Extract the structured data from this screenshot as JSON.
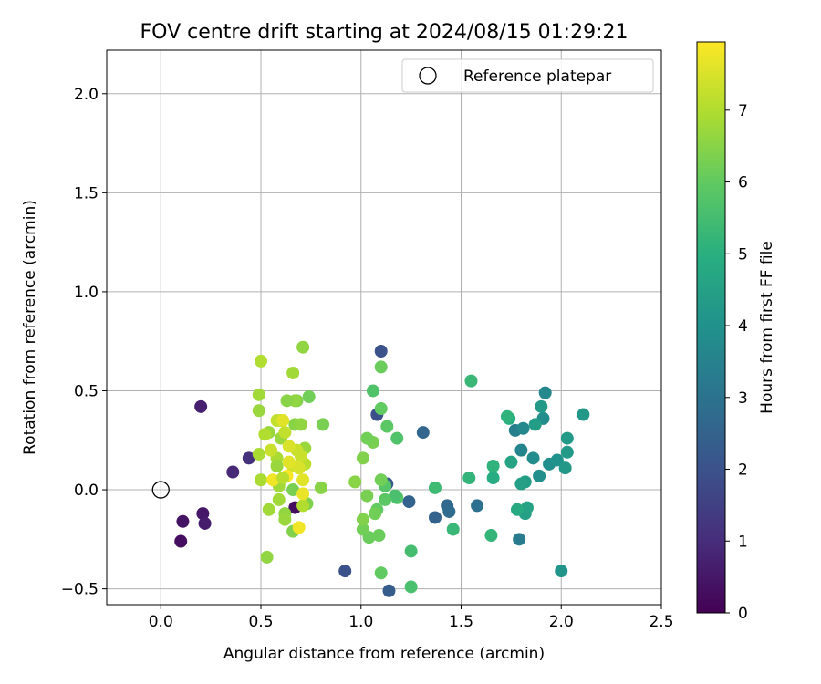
{
  "chart_data": {
    "type": "scatter",
    "title": "FOV centre drift starting at 2024/08/15 01:29:21",
    "xlabel": "Angular distance from reference (arcmin)",
    "ylabel": "Rotation from reference (arcmin)",
    "xlim": [
      -0.27,
      2.5
    ],
    "ylim": [
      -0.58,
      2.22
    ],
    "x_ticks": [
      0.0,
      0.5,
      1.0,
      1.5,
      2.0,
      2.5
    ],
    "x_tick_labels": [
      "0.0",
      "0.5",
      "1.0",
      "1.5",
      "2.0",
      "2.5"
    ],
    "y_ticks": [
      -0.5,
      0.0,
      0.5,
      1.0,
      1.5,
      2.0
    ],
    "y_tick_labels": [
      "−0.5",
      "0.0",
      "0.5",
      "1.0",
      "1.5",
      "2.0"
    ],
    "grid": true,
    "legend_position": "top-right",
    "legend": [
      {
        "label": "Reference platepar",
        "marker": "hollow-circle",
        "color": "#000000"
      }
    ],
    "reference_point": {
      "x": 0.0,
      "y": 0.0
    },
    "colorbar": {
      "label": "Hours from first FF file",
      "min": 0,
      "max": 7.95,
      "ticks": [
        0,
        1,
        2,
        3,
        4,
        5,
        6,
        7
      ],
      "tick_labels": [
        "0",
        "1",
        "2",
        "3",
        "4",
        "5",
        "6",
        "7"
      ],
      "colormap": "viridis"
    },
    "points": [
      {
        "x": 0.1,
        "y": -0.26,
        "c": 0.3
      },
      {
        "x": 0.11,
        "y": -0.16,
        "c": 0.4
      },
      {
        "x": 0.21,
        "y": -0.12,
        "c": 0.5
      },
      {
        "x": 0.22,
        "y": -0.17,
        "c": 0.6
      },
      {
        "x": 0.2,
        "y": 0.42,
        "c": 0.7
      },
      {
        "x": 0.36,
        "y": 0.09,
        "c": 0.9
      },
      {
        "x": 0.44,
        "y": 0.16,
        "c": 1.1
      },
      {
        "x": 0.67,
        "y": -0.09,
        "c": 0.3
      },
      {
        "x": 0.92,
        "y": -0.41,
        "c": 2.0
      },
      {
        "x": 1.1,
        "y": 0.7,
        "c": 2.0
      },
      {
        "x": 1.08,
        "y": 0.38,
        "c": 1.9
      },
      {
        "x": 1.14,
        "y": -0.51,
        "c": 2.3
      },
      {
        "x": 1.13,
        "y": 0.03,
        "c": 2.2
      },
      {
        "x": 1.24,
        "y": -0.06,
        "c": 2.5
      },
      {
        "x": 1.31,
        "y": 0.29,
        "c": 2.6
      },
      {
        "x": 1.37,
        "y": -0.14,
        "c": 2.5
      },
      {
        "x": 1.43,
        "y": -0.08,
        "c": 2.7
      },
      {
        "x": 1.44,
        "y": -0.11,
        "c": 2.8
      },
      {
        "x": 1.58,
        "y": -0.08,
        "c": 2.9
      },
      {
        "x": 1.79,
        "y": -0.25,
        "c": 3.3
      },
      {
        "x": 1.77,
        "y": 0.3,
        "c": 3.4
      },
      {
        "x": 1.8,
        "y": 0.2,
        "c": 3.6
      },
      {
        "x": 1.81,
        "y": 0.31,
        "c": 3.7
      },
      {
        "x": 1.86,
        "y": 0.16,
        "c": 3.8
      },
      {
        "x": 1.89,
        "y": 0.07,
        "c": 3.9
      },
      {
        "x": 1.91,
        "y": 0.36,
        "c": 3.8
      },
      {
        "x": 1.92,
        "y": 0.49,
        "c": 3.7
      },
      {
        "x": 1.94,
        "y": 0.13,
        "c": 3.9
      },
      {
        "x": 1.98,
        "y": 0.15,
        "c": 4.0
      },
      {
        "x": 2.0,
        "y": -0.41,
        "c": 4.1
      },
      {
        "x": 2.02,
        "y": 0.11,
        "c": 4.2
      },
      {
        "x": 2.03,
        "y": 0.19,
        "c": 4.3
      },
      {
        "x": 2.03,
        "y": 0.26,
        "c": 4.3
      },
      {
        "x": 2.11,
        "y": 0.38,
        "c": 4.2
      },
      {
        "x": 1.9,
        "y": 0.42,
        "c": 4.3
      },
      {
        "x": 1.87,
        "y": 0.33,
        "c": 4.4
      },
      {
        "x": 1.82,
        "y": -0.12,
        "c": 4.5
      },
      {
        "x": 1.83,
        "y": -0.09,
        "c": 4.6
      },
      {
        "x": 1.82,
        "y": 0.04,
        "c": 4.4
      },
      {
        "x": 1.8,
        "y": 0.03,
        "c": 4.5
      },
      {
        "x": 1.78,
        "y": -0.1,
        "c": 4.8
      },
      {
        "x": 1.75,
        "y": 0.14,
        "c": 4.6
      },
      {
        "x": 1.74,
        "y": 0.36,
        "c": 4.9
      },
      {
        "x": 1.73,
        "y": 0.37,
        "c": 5.1
      },
      {
        "x": 1.66,
        "y": 0.06,
        "c": 4.9
      },
      {
        "x": 1.66,
        "y": 0.12,
        "c": 5.1
      },
      {
        "x": 1.65,
        "y": -0.23,
        "c": 5.2
      },
      {
        "x": 1.55,
        "y": 0.55,
        "c": 5.3
      },
      {
        "x": 1.54,
        "y": 0.06,
        "c": 5.2
      },
      {
        "x": 1.46,
        "y": -0.2,
        "c": 5.3
      },
      {
        "x": 1.37,
        "y": 0.01,
        "c": 5.4
      },
      {
        "x": 1.25,
        "y": -0.31,
        "c": 5.5
      },
      {
        "x": 1.25,
        "y": -0.49,
        "c": 5.6
      },
      {
        "x": 1.18,
        "y": 0.26,
        "c": 5.7
      },
      {
        "x": 1.18,
        "y": -0.04,
        "c": 5.8
      },
      {
        "x": 1.17,
        "y": -0.03,
        "c": 5.6
      },
      {
        "x": 1.13,
        "y": 0.32,
        "c": 5.9
      },
      {
        "x": 1.12,
        "y": 0.02,
        "c": 5.8
      },
      {
        "x": 1.12,
        "y": -0.05,
        "c": 5.9
      },
      {
        "x": 1.1,
        "y": 0.62,
        "c": 6.1
      },
      {
        "x": 1.1,
        "y": 0.41,
        "c": 6.0
      },
      {
        "x": 1.1,
        "y": 0.05,
        "c": 6.2
      },
      {
        "x": 1.1,
        "y": -0.42,
        "c": 6.0
      },
      {
        "x": 1.09,
        "y": -0.23,
        "c": 6.1
      },
      {
        "x": 1.08,
        "y": -0.1,
        "c": 6.0
      },
      {
        "x": 1.07,
        "y": -0.12,
        "c": 6.2
      },
      {
        "x": 1.06,
        "y": 0.5,
        "c": 5.7
      },
      {
        "x": 1.06,
        "y": 0.24,
        "c": 6.3
      },
      {
        "x": 1.04,
        "y": -0.24,
        "c": 6.1
      },
      {
        "x": 1.03,
        "y": 0.26,
        "c": 6.2
      },
      {
        "x": 1.03,
        "y": -0.03,
        "c": 6.3
      },
      {
        "x": 1.01,
        "y": 0.16,
        "c": 6.4
      },
      {
        "x": 1.01,
        "y": -0.2,
        "c": 6.2
      },
      {
        "x": 1.01,
        "y": -0.15,
        "c": 6.4
      },
      {
        "x": 0.97,
        "y": 0.04,
        "c": 6.5
      },
      {
        "x": 0.81,
        "y": 0.33,
        "c": 6.3
      },
      {
        "x": 0.8,
        "y": 0.01,
        "c": 6.5
      },
      {
        "x": 0.74,
        "y": 0.47,
        "c": 6.2
      },
      {
        "x": 0.73,
        "y": -0.07,
        "c": 6.4
      },
      {
        "x": 0.71,
        "y": 0.72,
        "c": 6.6
      },
      {
        "x": 0.68,
        "y": 0.45,
        "c": 6.4
      },
      {
        "x": 0.67,
        "y": 0.45,
        "c": 6.6
      },
      {
        "x": 0.67,
        "y": 0.33,
        "c": 6.5
      },
      {
        "x": 0.66,
        "y": 0.59,
        "c": 6.8
      },
      {
        "x": 0.66,
        "y": 0.0,
        "c": 6.3
      },
      {
        "x": 0.66,
        "y": -0.21,
        "c": 6.4
      },
      {
        "x": 0.63,
        "y": 0.45,
        "c": 6.5
      },
      {
        "x": 0.62,
        "y": -0.12,
        "c": 6.6
      },
      {
        "x": 0.62,
        "y": -0.15,
        "c": 6.7
      },
      {
        "x": 0.6,
        "y": 0.35,
        "c": 6.9
      },
      {
        "x": 0.6,
        "y": 0.26,
        "c": 6.7
      },
      {
        "x": 0.59,
        "y": 0.02,
        "c": 6.8
      },
      {
        "x": 0.58,
        "y": 0.16,
        "c": 6.9
      },
      {
        "x": 0.58,
        "y": 0.12,
        "c": 6.7
      },
      {
        "x": 0.59,
        "y": -0.05,
        "c": 6.8
      },
      {
        "x": 0.54,
        "y": 0.29,
        "c": 6.7
      },
      {
        "x": 0.54,
        "y": -0.1,
        "c": 6.8
      },
      {
        "x": 0.53,
        "y": -0.34,
        "c": 6.6
      },
      {
        "x": 0.52,
        "y": 0.28,
        "c": 7.0
      },
      {
        "x": 0.5,
        "y": 0.65,
        "c": 7.0
      },
      {
        "x": 0.5,
        "y": 0.05,
        "c": 6.9
      },
      {
        "x": 0.49,
        "y": 0.48,
        "c": 6.8
      },
      {
        "x": 0.49,
        "y": 0.4,
        "c": 6.7
      },
      {
        "x": 0.49,
        "y": 0.18,
        "c": 6.9
      },
      {
        "x": 0.7,
        "y": 0.33,
        "c": 6.6
      },
      {
        "x": 0.72,
        "y": 0.21,
        "c": 6.7
      },
      {
        "x": 0.72,
        "y": 0.13,
        "c": 7.1
      },
      {
        "x": 0.71,
        "y": -0.08,
        "c": 7.0
      },
      {
        "x": 0.7,
        "y": 0.17,
        "c": 7.3
      },
      {
        "x": 0.68,
        "y": 0.2,
        "c": 7.3
      },
      {
        "x": 0.66,
        "y": 0.12,
        "c": 7.4
      },
      {
        "x": 0.69,
        "y": 0.11,
        "c": 7.5
      },
      {
        "x": 0.71,
        "y": 0.05,
        "c": 7.6
      },
      {
        "x": 0.71,
        "y": -0.02,
        "c": 7.7
      },
      {
        "x": 0.69,
        "y": -0.19,
        "c": 7.8
      },
      {
        "x": 0.64,
        "y": 0.22,
        "c": 7.5
      },
      {
        "x": 0.64,
        "y": 0.14,
        "c": 7.6
      },
      {
        "x": 0.63,
        "y": 0.07,
        "c": 7.9
      },
      {
        "x": 0.56,
        "y": 0.05,
        "c": 7.8
      },
      {
        "x": 0.58,
        "y": 0.35,
        "c": 7.2
      },
      {
        "x": 0.61,
        "y": 0.35,
        "c": 7.6
      },
      {
        "x": 0.55,
        "y": 0.2,
        "c": 7.3
      },
      {
        "x": 0.62,
        "y": 0.29,
        "c": 7.2
      },
      {
        "x": 0.61,
        "y": 0.06,
        "c": 7.1
      }
    ]
  }
}
